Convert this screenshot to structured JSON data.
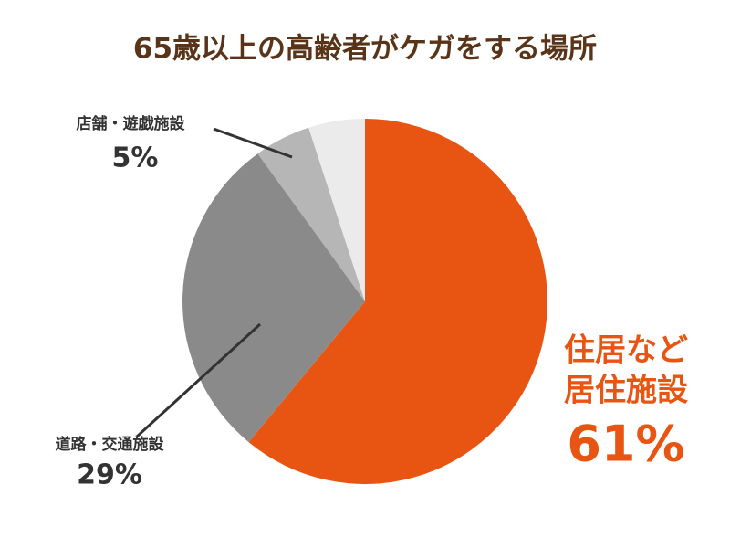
{
  "chart_data": {
    "type": "pie",
    "title": "65歳以上の高齢者がケガをする場所",
    "categories": [
      [
        "住居など",
        "居住施設"
      ],
      "道路・交通施設",
      "店舗・遊戯施設",
      null
    ],
    "values": [
      61,
      29,
      5,
      5
    ],
    "value_labels": [
      "61%",
      "29%",
      "5%",
      null
    ],
    "colors": [
      "#e85513",
      "#8a8a8a",
      "#b6b6b6",
      "#ebebeb"
    ],
    "start_angle": 0,
    "direction": "clockwise"
  }
}
